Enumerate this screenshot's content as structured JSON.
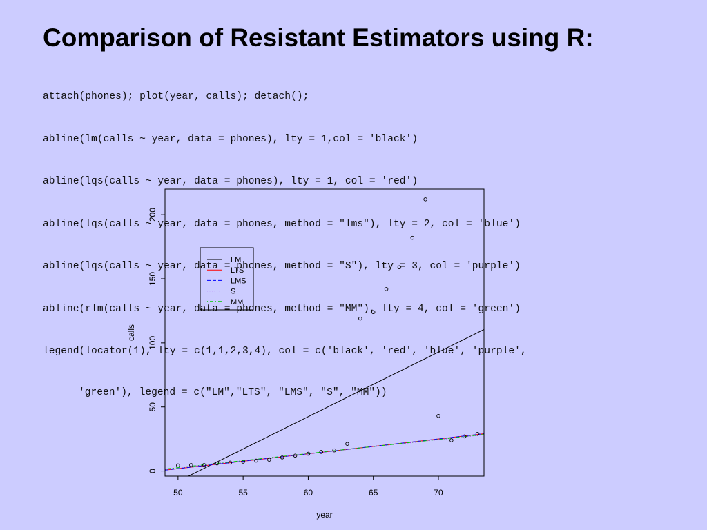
{
  "slide": {
    "title": "Comparison of Resistant Estimators using R:",
    "code_lines": [
      "attach(phones); plot(year, calls); detach();",
      "abline(lm(calls ~ year, data = phones), lty = 1,col = 'black')",
      "abline(lqs(calls ~ year, data = phones), lty = 1, col = 'red')",
      "abline(lqs(calls ~ year, data = phones, method = \"lms\"), lty = 2, col = 'blue')",
      "abline(lqs(calls ~ year, data = phones, method = \"S\"), lty = 3, col = 'purple')",
      "abline(rlm(calls ~ year, data = phones, method = \"MM\"), lty = 4, col = 'green')",
      "legend(locator(1), lty = c(1,1,2,3,4), col = c('black', 'red', 'blue', 'purple',",
      "'green'), legend = c(\"LM\",\"LTS\", \"LMS\", \"S\", \"MM\"))"
    ]
  },
  "chart_data": {
    "type": "scatter",
    "title": "",
    "xlabel": "year",
    "ylabel": "calls",
    "xlim": [
      49,
      73.5
    ],
    "ylim": [
      -4,
      220
    ],
    "xticks": [
      50,
      55,
      60,
      65,
      70
    ],
    "yticks": [
      0,
      50,
      100,
      150,
      200
    ],
    "grid": false,
    "legend_position": "top-left",
    "points": {
      "x": [
        50,
        51,
        52,
        53,
        54,
        55,
        56,
        57,
        58,
        59,
        60,
        61,
        62,
        63,
        64,
        65,
        66,
        67,
        68,
        69,
        70,
        71,
        72,
        73
      ],
      "y": [
        4.4,
        4.7,
        4.7,
        5.9,
        6.6,
        7.3,
        8.1,
        8.8,
        10.6,
        12.0,
        13.5,
        14.9,
        16.1,
        21.2,
        119.0,
        124.0,
        142.0,
        159.0,
        182.0,
        212.0,
        43.0,
        24.0,
        27.0,
        29.0
      ]
    },
    "series": [
      {
        "name": "LM",
        "color": "#000000",
        "dash": "solid",
        "intercept": -260.06,
        "slope": 5.0412
      },
      {
        "name": "LTS",
        "color": "#ff0000",
        "dash": "solid",
        "intercept": -56.16,
        "slope": 1.16
      },
      {
        "name": "LMS",
        "color": "#0000ff",
        "dash": "dashed",
        "intercept": -56.16,
        "slope": 1.16
      },
      {
        "name": "S",
        "color": "#a020f0",
        "dash": "dotted",
        "intercept": -52.54,
        "slope": 1.1
      },
      {
        "name": "MM",
        "color": "#00cd00",
        "dash": "dotdash",
        "intercept": -52.42,
        "slope": 1.101
      }
    ]
  }
}
